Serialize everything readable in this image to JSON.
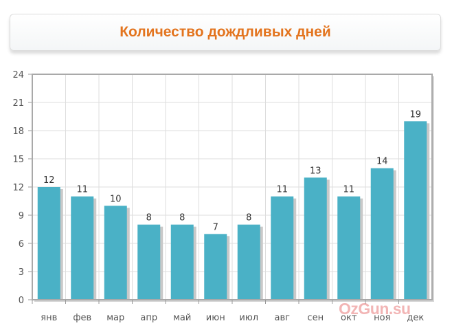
{
  "title": "Количество дождливых дней",
  "watermark": "OzGun.su",
  "colors": {
    "title": "#e3741e",
    "bar": "#4ab1c6",
    "bar_shadow": "#c9c9c9",
    "grid": "#dddddd",
    "plot_border": "#a9a9a9"
  },
  "chart_data": {
    "type": "bar",
    "title": "Количество дождливых дней",
    "categories": [
      "янв",
      "фев",
      "мар",
      "апр",
      "май",
      "июн",
      "июл",
      "авг",
      "сен",
      "окт",
      "ноя",
      "дек"
    ],
    "values": [
      12,
      11,
      10,
      8,
      8,
      7,
      8,
      11,
      13,
      11,
      14,
      19
    ],
    "ylim": [
      0,
      24
    ],
    "yticks": [
      0,
      3,
      6,
      9,
      12,
      15,
      18,
      21,
      24
    ],
    "grid": true,
    "data_labels": true
  }
}
